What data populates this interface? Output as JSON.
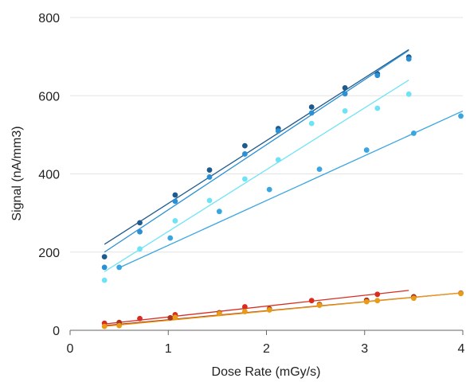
{
  "chart_data": {
    "type": "scatter",
    "title": "",
    "xlabel": "Dose Rate (mGy/s)",
    "ylabel": "Signal (nA/mm3)",
    "xlim": [
      0,
      4
    ],
    "ylim": [
      0,
      800
    ],
    "x_ticks": [
      "0",
      "1",
      "2",
      "3",
      "4"
    ],
    "y_ticks": [
      "0",
      "200",
      "400",
      "600",
      "800"
    ],
    "grid": "horizontal",
    "legend": "none",
    "series": [
      {
        "color": "#1f5a8c",
        "points": [
          [
            0.35,
            188
          ],
          [
            0.71,
            275
          ],
          [
            1.07,
            346
          ],
          [
            1.42,
            410
          ],
          [
            1.78,
            472
          ],
          [
            2.12,
            516
          ],
          [
            2.46,
            571
          ],
          [
            2.8,
            620
          ],
          [
            3.13,
            656
          ],
          [
            3.45,
            699
          ]
        ],
        "trendline": [
          [
            0.35,
            220
          ],
          [
            3.45,
            718
          ]
        ]
      },
      {
        "color": "#2a8fd4",
        "points": [
          [
            0.35,
            161
          ],
          [
            0.71,
            252
          ],
          [
            1.07,
            330
          ],
          [
            1.42,
            392
          ],
          [
            1.78,
            451
          ],
          [
            2.12,
            510
          ],
          [
            2.46,
            556
          ],
          [
            2.8,
            605
          ],
          [
            3.13,
            652
          ],
          [
            3.45,
            694
          ]
        ],
        "trendline": [
          [
            0.35,
            200
          ],
          [
            3.45,
            716
          ]
        ]
      },
      {
        "color": "#6ee3f5",
        "points": [
          [
            0.35,
            128
          ],
          [
            0.71,
            208
          ],
          [
            1.07,
            280
          ],
          [
            1.42,
            332
          ],
          [
            1.78,
            387
          ],
          [
            2.12,
            436
          ],
          [
            2.46,
            529
          ],
          [
            2.8,
            561
          ],
          [
            3.13,
            568
          ],
          [
            3.45,
            604
          ]
        ],
        "trendline": [
          [
            0.35,
            150
          ],
          [
            3.45,
            640
          ]
        ]
      },
      {
        "color": "#3aa6e0",
        "points": [
          [
            0.5,
            161
          ],
          [
            1.02,
            236
          ],
          [
            1.52,
            304
          ],
          [
            2.03,
            360
          ],
          [
            2.54,
            412
          ],
          [
            3.02,
            461
          ],
          [
            3.5,
            504
          ],
          [
            3.98,
            548
          ]
        ],
        "trendline": [
          [
            0.5,
            160
          ],
          [
            4.0,
            561
          ]
        ]
      },
      {
        "color": "#d92b1f",
        "points": [
          [
            0.35,
            18
          ],
          [
            0.71,
            30
          ],
          [
            1.07,
            40
          ],
          [
            1.78,
            60
          ],
          [
            2.46,
            76
          ],
          [
            3.13,
            92
          ]
        ],
        "trendline": [
          [
            0.35,
            16
          ],
          [
            3.45,
            102
          ]
        ]
      },
      {
        "color": "#a8351e",
        "points": [
          [
            0.5,
            20
          ],
          [
            1.02,
            32
          ],
          [
            1.52,
            45
          ],
          [
            2.03,
            55
          ],
          [
            2.54,
            66
          ],
          [
            3.02,
            77
          ],
          [
            3.5,
            86
          ],
          [
            3.98,
            95
          ]
        ],
        "trendline": [
          [
            0.35,
            12
          ],
          [
            4.0,
            96
          ]
        ]
      },
      {
        "color": "#e89b17",
        "points": [
          [
            0.35,
            10
          ],
          [
            0.5,
            12
          ],
          [
            1.07,
            33
          ],
          [
            1.52,
            43
          ],
          [
            1.78,
            48
          ],
          [
            2.03,
            52
          ],
          [
            2.54,
            64
          ],
          [
            3.02,
            73
          ],
          [
            3.13,
            76
          ],
          [
            3.5,
            82
          ],
          [
            3.98,
            94
          ]
        ],
        "trendline": [
          [
            0.35,
            10
          ],
          [
            4.0,
            96
          ]
        ]
      }
    ]
  }
}
